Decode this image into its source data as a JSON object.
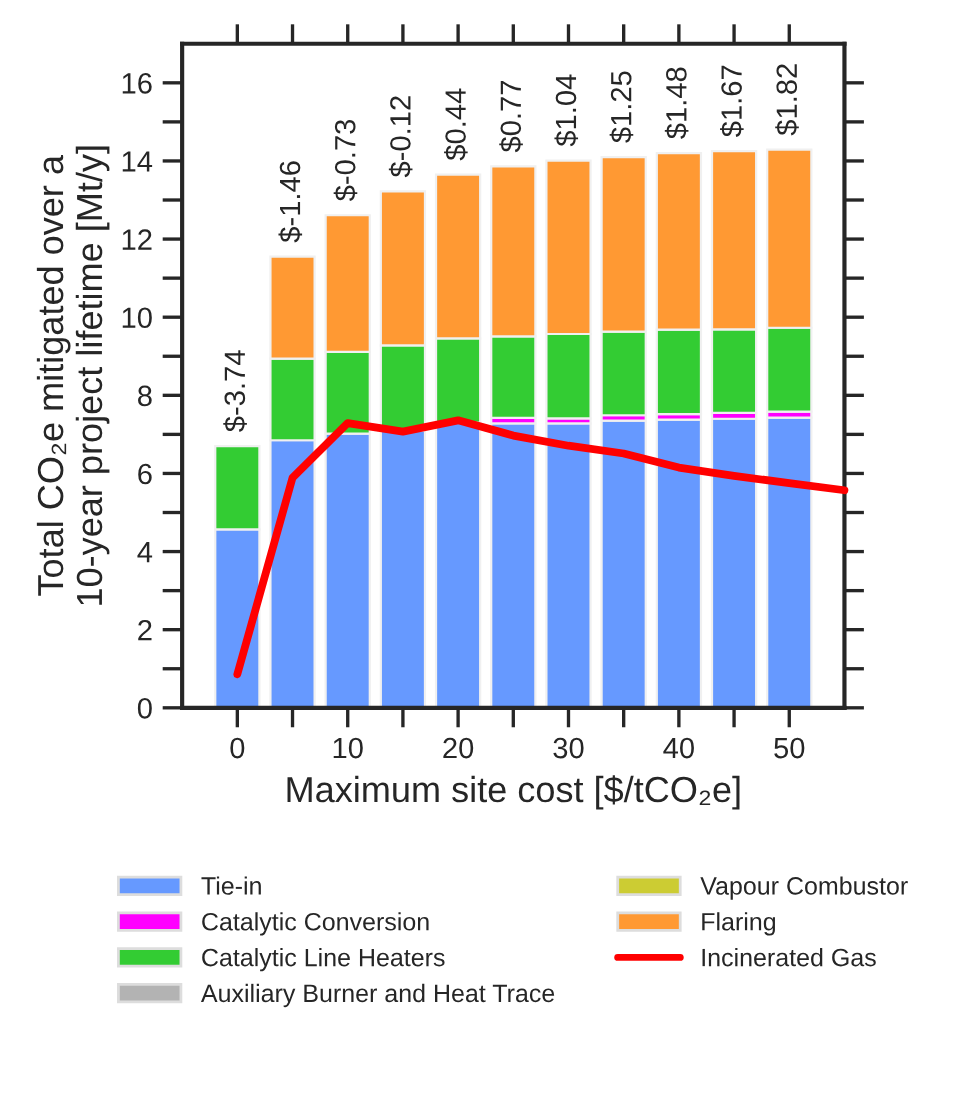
{
  "chart_data": {
    "type": "bar",
    "stacked": true,
    "xlabel": "Maximum site cost [$/tCO₂e]",
    "ylabel": "Total CO₂e mitigated over a\n10-year project lifetime [Mt/y]",
    "x": [
      0,
      5,
      10,
      15,
      20,
      25,
      30,
      35,
      40,
      45,
      50
    ],
    "series": [
      {
        "name": "Tie-in",
        "color": "#6699ff",
        "values": [
          4.57,
          6.85,
          7.02,
          7.1,
          7.3,
          7.28,
          7.28,
          7.35,
          7.38,
          7.4,
          7.43
        ]
      },
      {
        "name": "Catalytic Conversion",
        "color": "#ff00ff",
        "values": [
          null,
          null,
          null,
          null,
          null,
          0.14,
          0.13,
          0.14,
          0.14,
          0.15,
          0.15
        ]
      },
      {
        "name": "Catalytic Line Heaters",
        "color": "#33cc33",
        "values": [
          2.13,
          2.09,
          2.09,
          2.18,
          2.16,
          2.09,
          2.16,
          2.14,
          2.16,
          2.14,
          2.15
        ]
      },
      {
        "name": "Auxiliary Burner and Heat Trace",
        "color": "#b3b3b3",
        "values": [
          null,
          null,
          null,
          null,
          null,
          null,
          null,
          null,
          null,
          null,
          null
        ]
      },
      {
        "name": "Vapour Combustor",
        "color": "#cccc33",
        "values": [
          null,
          null,
          null,
          null,
          null,
          null,
          null,
          null,
          null,
          null,
          null
        ]
      },
      {
        "name": "Flaring",
        "color": "#ff9933",
        "values": [
          null,
          2.61,
          3.5,
          3.94,
          4.19,
          4.35,
          4.44,
          4.47,
          4.52,
          4.56,
          4.56
        ]
      },
      {
        "name": "Incinerated Gas",
        "type": "line",
        "color": "#ff0000",
        "x": [
          0,
          5,
          10,
          15,
          20,
          25,
          30,
          35,
          40,
          45,
          50,
          55
        ],
        "values": [
          0.86,
          5.89,
          7.29,
          7.07,
          7.36,
          6.97,
          6.71,
          6.51,
          6.15,
          5.94,
          5.75,
          5.57
        ]
      }
    ],
    "annotations": [
      {
        "text": "$-3.74",
        "x": 0,
        "y": 6.7
      },
      {
        "text": "$-1.46",
        "x": 5,
        "y": 11.55
      },
      {
        "text": "$-0.73",
        "x": 10,
        "y": 12.61
      },
      {
        "text": "$-0.12",
        "x": 15,
        "y": 13.22
      },
      {
        "text": "$0.44",
        "x": 20,
        "y": 13.65
      },
      {
        "text": "$0.77",
        "x": 25,
        "y": 13.86
      },
      {
        "text": "$1.04",
        "x": 30,
        "y": 14.01
      },
      {
        "text": "$1.25",
        "x": 35,
        "y": 14.1
      },
      {
        "text": "$1.48",
        "x": 40,
        "y": 14.2
      },
      {
        "text": "$1.67",
        "x": 45,
        "y": 14.25
      },
      {
        "text": "$1.82",
        "x": 50,
        "y": 14.29
      }
    ],
    "xlim": [
      -5,
      55
    ],
    "xticks": [
      0,
      {
        "value": 5,
        "label": null
      },
      10,
      {
        "value": 15,
        "label": null
      },
      20,
      {
        "value": 25,
        "label": null
      },
      30,
      {
        "value": 35,
        "label": null
      },
      40,
      {
        "value": 45,
        "label": null
      },
      50
    ],
    "ylim": [
      0,
      17
    ],
    "yticks": [
      0,
      {
        "value": 1,
        "label": null
      },
      2,
      {
        "value": 3,
        "label": null
      },
      4,
      {
        "value": 5,
        "label": null
      },
      6,
      {
        "value": 7,
        "label": null
      },
      8,
      {
        "value": 9,
        "label": null
      },
      10,
      {
        "value": 11,
        "label": null
      },
      12,
      {
        "value": 13,
        "label": null
      },
      14,
      {
        "value": 15,
        "label": null
      },
      16
    ],
    "grid": false,
    "legend": "bottom"
  }
}
